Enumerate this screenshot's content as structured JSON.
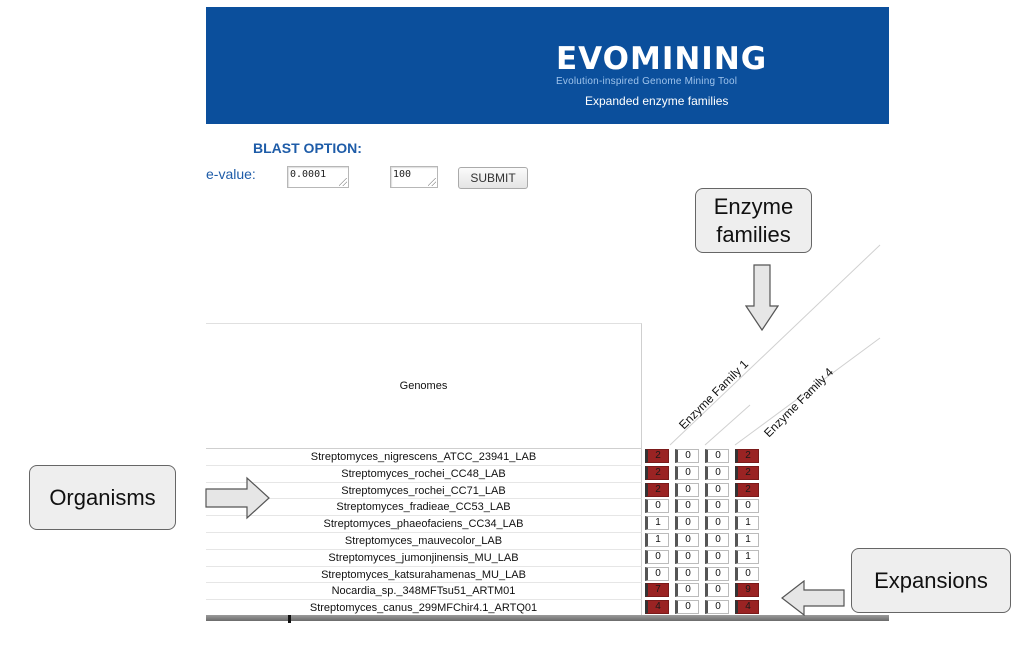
{
  "header": {
    "logo": "EVOMINING",
    "tagline": "Evolution-inspired Genome Mining Tool",
    "subtitle": "Expanded enzyme families"
  },
  "blast": {
    "heading": "BLAST OPTION:",
    "evalue_label": "e-value:",
    "evalue_value": "0.0001",
    "second_value": "100",
    "submit_label": "SUBMIT"
  },
  "callouts": {
    "enzyme_families": "Enzyme families",
    "organisms": "Organisms",
    "expansions": "Expansions"
  },
  "table": {
    "genomes_header": "Genomes",
    "family_headers": [
      "Enzyme Family 1",
      "Enzyme Family 4"
    ],
    "rows": [
      {
        "organism": "Streptomyces_nigrescens_ATCC_23941_LAB",
        "values": [
          2,
          0,
          0,
          2
        ]
      },
      {
        "organism": "Streptomyces_rochei_CC48_LAB",
        "values": [
          2,
          0,
          0,
          2
        ]
      },
      {
        "organism": "Streptomyces_rochei_CC71_LAB",
        "values": [
          2,
          0,
          0,
          2
        ]
      },
      {
        "organism": "Streptomyces_fradieae_CC53_LAB",
        "values": [
          0,
          0,
          0,
          0
        ]
      },
      {
        "organism": "Streptomyces_phaeofaciens_CC34_LAB",
        "values": [
          1,
          0,
          0,
          1
        ]
      },
      {
        "organism": "Streptomyces_mauvecolor_LAB",
        "values": [
          1,
          0,
          0,
          1
        ]
      },
      {
        "organism": "Streptomyces_jumonjinensis_MU_LAB",
        "values": [
          0,
          0,
          0,
          1
        ]
      },
      {
        "organism": "Streptomyces_katsurahamenas_MU_LAB",
        "values": [
          0,
          0,
          0,
          0
        ]
      },
      {
        "organism": "Nocardia_sp._348MFTsu51_ARTM01",
        "values": [
          7,
          0,
          0,
          9
        ]
      },
      {
        "organism": "Streptomyces_canus_299MFChir4.1_ARTQ01",
        "values": [
          4,
          0,
          0,
          4
        ]
      }
    ]
  },
  "colors": {
    "banner": "#0b4f9c",
    "accent_text": "#1e5ca8",
    "expansion_cell": "#9a2323"
  }
}
